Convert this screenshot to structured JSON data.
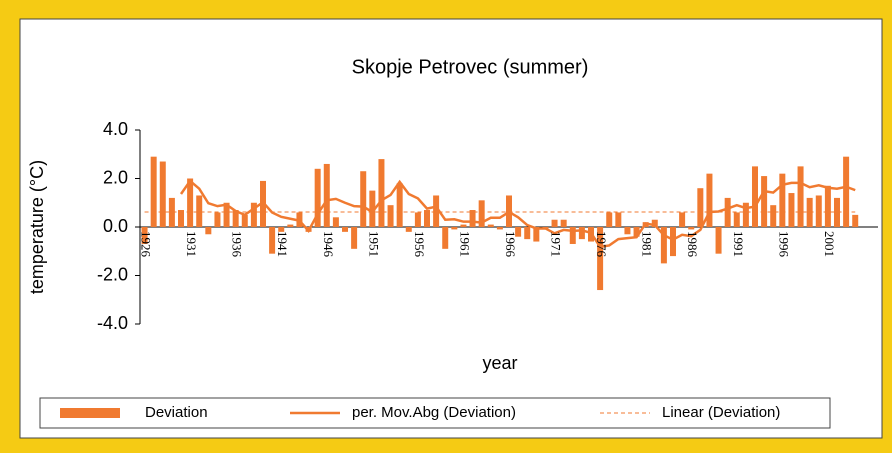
{
  "chart_data": {
    "type": "bar",
    "title": "Skopje Petrovec (summer)",
    "x_label": "year",
    "y_label": "temperature (°C)",
    "categories": [
      "1926",
      null,
      null,
      null,
      null,
      "1931",
      null,
      null,
      null,
      null,
      "1936",
      null,
      null,
      null,
      null,
      "1941",
      null,
      null,
      null,
      null,
      "1946",
      null,
      null,
      null,
      null,
      "1951",
      null,
      null,
      null,
      null,
      "1956",
      null,
      null,
      null,
      null,
      "1961",
      null,
      null,
      null,
      null,
      "1966",
      null,
      null,
      null,
      null,
      "1971",
      null,
      null,
      null,
      null,
      "1976",
      null,
      null,
      null,
      null,
      "1981",
      null,
      null,
      null,
      null,
      "1986",
      null,
      null,
      null,
      null,
      "1991",
      null,
      null,
      null,
      null,
      "1996",
      null,
      null,
      null,
      null,
      "2001",
      null,
      null,
      null
    ],
    "series": [
      {
        "name": "Deviation",
        "color": "#f07a30",
        "values": [
          -0.7,
          2.9,
          2.7,
          1.2,
          0.7,
          2.0,
          1.3,
          -0.3,
          0.6,
          1.0,
          0.7,
          0.5,
          1.0,
          1.9,
          -1.1,
          -0.2,
          0.1,
          0.6,
          -0.2,
          2.4,
          2.6,
          0.4,
          -0.2,
          -0.9,
          2.3,
          1.5,
          2.8,
          0.9,
          1.8,
          -0.2,
          0.6,
          0.7,
          1.3,
          -0.9,
          -0.1,
          0.1,
          0.7,
          1.1,
          0.1,
          -0.1,
          1.3,
          -0.4,
          -0.5,
          -0.6,
          -0.1,
          0.3,
          0.3,
          -0.7,
          -0.5,
          -0.6,
          -2.6,
          0.6,
          0.6,
          -0.3,
          -0.4,
          0.2,
          0.3,
          -1.5,
          -1.2,
          0.6,
          -0.1,
          1.6,
          2.2,
          -1.1,
          1.2,
          0.6,
          1.0,
          2.5,
          2.1,
          0.9,
          2.2,
          1.4,
          2.5,
          1.2,
          1.3,
          1.7,
          1.2,
          2.9,
          0.5
        ]
      },
      {
        "name": "per. Mov.Abg (Deviation)",
        "color": "#f07a30",
        "values": [
          null,
          null,
          null,
          null,
          1.36,
          1.9,
          1.58,
          0.98,
          0.86,
          0.92,
          0.66,
          0.5,
          0.76,
          1.02,
          0.6,
          0.42,
          0.34,
          0.26,
          -0.16,
          0.54,
          1.1,
          1.16,
          1.0,
          0.86,
          0.84,
          0.62,
          1.1,
          1.32,
          1.86,
          1.36,
          1.18,
          0.76,
          0.84,
          0.3,
          0.32,
          0.22,
          0.22,
          0.18,
          0.38,
          0.38,
          0.62,
          0.4,
          0.08,
          -0.06,
          -0.06,
          -0.26,
          -0.12,
          -0.16,
          -0.14,
          -0.24,
          -0.82,
          -0.76,
          -0.5,
          -0.46,
          -0.42,
          0.14,
          0.08,
          -0.34,
          -0.52,
          -0.32,
          -0.38,
          -0.12,
          0.62,
          0.64,
          0.76,
          0.9,
          0.78,
          0.84,
          1.48,
          1.42,
          1.74,
          1.82,
          1.82,
          1.64,
          1.72,
          1.62,
          1.58,
          1.66,
          1.52
        ]
      },
      {
        "name": "Linear (Deviation)",
        "color": "#f07a30",
        "dashed": true,
        "trend": [
          0.62,
          0.62
        ]
      }
    ],
    "ylim": [
      -4,
      4
    ],
    "yticks": [
      {
        "value": 4,
        "label": "4.0"
      },
      {
        "value": 2,
        "label": "2.0"
      },
      {
        "value": 0,
        "label": "0.0"
      },
      {
        "value": -2,
        "label": "-2.0"
      },
      {
        "value": -4,
        "label": "-4.0"
      }
    ],
    "legend": "bottom"
  }
}
